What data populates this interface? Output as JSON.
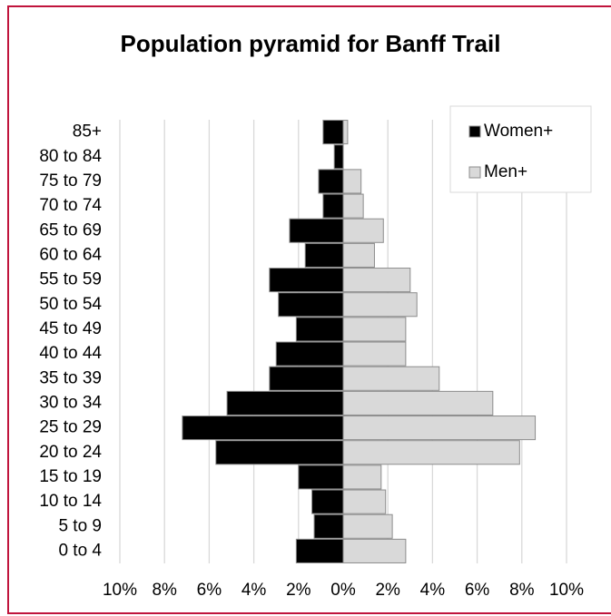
{
  "chart_data": {
    "type": "pyramid",
    "title": "Population pyramid for Banff Trail",
    "categories": [
      "0 to 4",
      "5 to 9",
      "10 to 14",
      "15 to 19",
      "20 to 24",
      "25 to 29",
      "30 to 34",
      "35 to 39",
      "40 to 44",
      "45 to 49",
      "50 to 54",
      "55 to 59",
      "60 to 64",
      "65 to 69",
      "70 to 74",
      "75 to 79",
      "80 to 84",
      "85+"
    ],
    "series": [
      {
        "name": "Women+",
        "color": "#000000",
        "values": [
          -2.1,
          -1.3,
          -1.4,
          -2.0,
          -5.7,
          -7.2,
          -5.2,
          -3.3,
          -3.0,
          -2.1,
          -2.9,
          -3.3,
          -1.7,
          -2.4,
          -0.9,
          -1.1,
          -0.4,
          -0.9
        ]
      },
      {
        "name": "Men+",
        "color": "#d9d9d9",
        "values": [
          2.8,
          2.2,
          1.9,
          1.7,
          7.9,
          8.6,
          6.7,
          4.3,
          2.8,
          2.8,
          3.3,
          3.0,
          1.4,
          1.8,
          0.9,
          0.8,
          0,
          0.2
        ]
      }
    ],
    "xlim": [
      -10,
      10
    ],
    "xticks": [
      {
        "value": -10,
        "label": "10%"
      },
      {
        "value": -8,
        "label": "8%"
      },
      {
        "value": -6,
        "label": "6%"
      },
      {
        "value": -4,
        "label": "4%"
      },
      {
        "value": -2,
        "label": "2%"
      },
      {
        "value": 0,
        "label": "0%"
      },
      {
        "value": 2,
        "label": "2%"
      },
      {
        "value": 4,
        "label": "4%"
      },
      {
        "value": 6,
        "label": "6%"
      },
      {
        "value": 8,
        "label": "8%"
      },
      {
        "value": 10,
        "label": "10%"
      }
    ],
    "grid": true,
    "legend": "top-right"
  }
}
